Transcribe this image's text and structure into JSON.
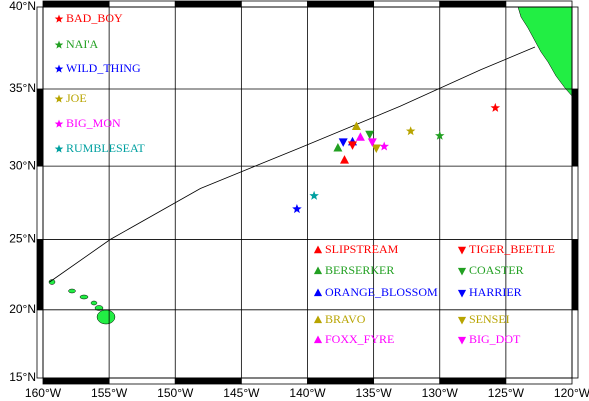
{
  "chart_data": {
    "type": "scatter",
    "projection": "mercator",
    "grid": true,
    "xlim": [
      -160,
      -120
    ],
    "ylim": [
      15,
      40
    ],
    "xticks": [
      {
        "value": -160,
        "label": "160°W"
      },
      {
        "value": -155,
        "label": "155°W"
      },
      {
        "value": -150,
        "label": "150°W"
      },
      {
        "value": -145,
        "label": "145°W"
      },
      {
        "value": -140,
        "label": "140°W"
      },
      {
        "value": -135,
        "label": "135°W"
      },
      {
        "value": -130,
        "label": "130°W"
      },
      {
        "value": -125,
        "label": "125°W"
      },
      {
        "value": -120,
        "label": "120°W"
      }
    ],
    "yticks": [
      {
        "value": 15,
        "label": "15°N"
      },
      {
        "value": 20,
        "label": "20°N"
      },
      {
        "value": 25,
        "label": "25°N"
      },
      {
        "value": 30,
        "label": "30°N"
      },
      {
        "value": 35,
        "label": "35°N"
      },
      {
        "value": 40,
        "label": "40°N"
      }
    ],
    "track": {
      "color": "#000000",
      "x": [
        -159.5,
        -154.9,
        -148.1,
        -140.6,
        -133.0,
        -126.9,
        -122.8
      ],
      "y": [
        22.0,
        25.0,
        28.5,
        31.2,
        33.9,
        36.2,
        37.6
      ]
    },
    "series": [
      {
        "name": "BAD_BOY",
        "color": "#ff0000",
        "marker": "star",
        "x": [
          -125.8
        ],
        "y": [
          33.8
        ]
      },
      {
        "name": "NAI'A",
        "color": "#22a022",
        "marker": "star",
        "x": [
          -130.0
        ],
        "y": [
          32.0
        ]
      },
      {
        "name": "WILD_THING",
        "color": "#0000ff",
        "marker": "star",
        "x": [
          -140.8
        ],
        "y": [
          27.1
        ]
      },
      {
        "name": "JOE",
        "color": "#b8a400",
        "marker": "star",
        "x": [
          -132.2
        ],
        "y": [
          32.3
        ]
      },
      {
        "name": "BIG_MON",
        "color": "#ff00ff",
        "marker": "star",
        "x": [
          -134.2
        ],
        "y": [
          31.3
        ]
      },
      {
        "name": "RUMBLESEAT",
        "color": "#00a0a0",
        "marker": "star",
        "x": [
          -139.5
        ],
        "y": [
          28.0
        ]
      },
      {
        "name": "SLIPSTREAM",
        "color": "#ff0000",
        "marker": "triangle-up",
        "x": [
          -137.2
        ],
        "y": [
          30.4
        ]
      },
      {
        "name": "BERSERKER",
        "color": "#22a022",
        "marker": "triangle-up",
        "x": [
          -137.7
        ],
        "y": [
          31.2
        ]
      },
      {
        "name": "ORANGE_BLOSSOM",
        "color": "#0000ff",
        "marker": "triangle-up",
        "x": [
          -136.6
        ],
        "y": [
          31.6
        ]
      },
      {
        "name": "BRAVO",
        "color": "#b8a400",
        "marker": "triangle-up",
        "x": [
          -136.3
        ],
        "y": [
          32.6
        ]
      },
      {
        "name": "FOXX_FYRE",
        "color": "#ff00ff",
        "marker": "triangle-up",
        "x": [
          -136.0
        ],
        "y": [
          31.9
        ]
      },
      {
        "name": "TIGER_BEETLE",
        "color": "#ff0000",
        "marker": "triangle-down",
        "x": [
          -136.6
        ],
        "y": [
          31.4
        ]
      },
      {
        "name": "COASTER",
        "color": "#22a022",
        "marker": "triangle-down",
        "x": [
          -135.3
        ],
        "y": [
          32.1
        ]
      },
      {
        "name": "HARRIER",
        "color": "#0000ff",
        "marker": "triangle-down",
        "x": [
          -137.3
        ],
        "y": [
          31.6
        ]
      },
      {
        "name": "SENSEI",
        "color": "#b8a400",
        "marker": "triangle-down",
        "x": [
          -134.8
        ],
        "y": [
          31.2
        ]
      },
      {
        "name": "BIG_DOT",
        "color": "#ff00ff",
        "marker": "triangle-down",
        "x": [
          -135.1
        ],
        "y": [
          31.6
        ]
      }
    ]
  }
}
